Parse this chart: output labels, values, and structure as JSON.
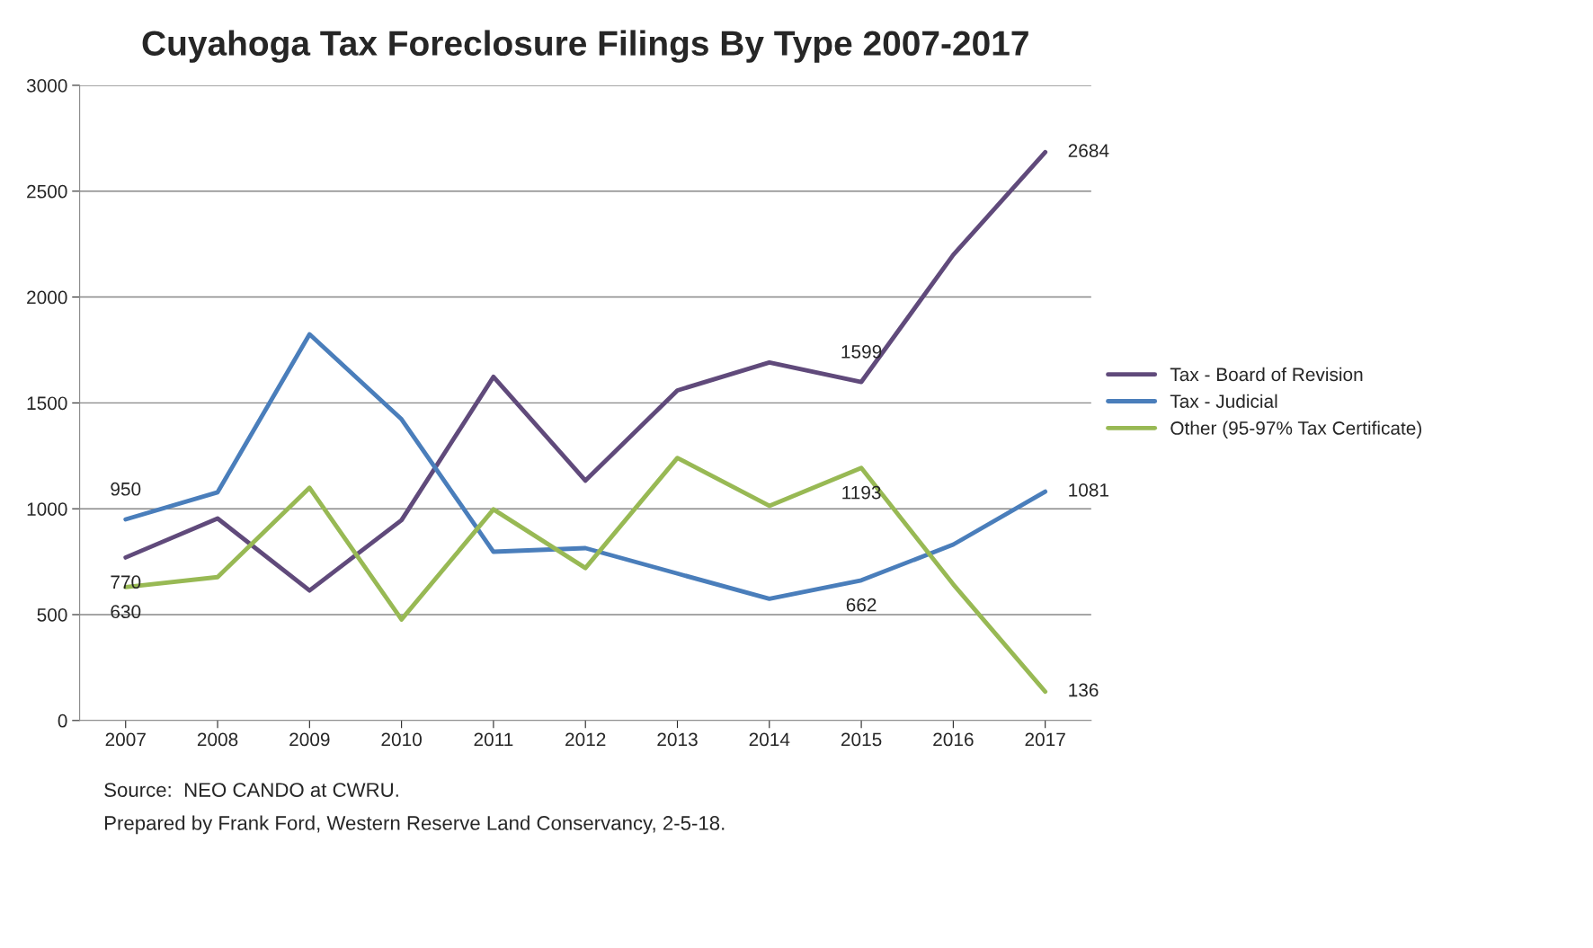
{
  "chart_data": {
    "type": "line",
    "title": "Cuyahoga Tax Foreclosure Filings By Type 2007-2017",
    "categories": [
      "2007",
      "2008",
      "2009",
      "2010",
      "2011",
      "2012",
      "2013",
      "2014",
      "2015",
      "2016",
      "2017"
    ],
    "series": [
      {
        "name": "Tax - Board of Revision",
        "color": "#604a7b",
        "values": [
          770,
          954,
          614,
          946,
          1623,
          1133,
          1559,
          1691,
          1599,
          2199,
          2684
        ],
        "value_labels": [
          "770",
          null,
          null,
          null,
          null,
          null,
          null,
          null,
          "1599",
          null,
          "2684"
        ]
      },
      {
        "name": "Tax - Judicial",
        "color": "#4a7ebb",
        "values": [
          950,
          1078,
          1824,
          1423,
          797,
          814,
          694,
          575,
          662,
          831,
          1081
        ],
        "value_labels": [
          "950",
          null,
          null,
          null,
          null,
          null,
          null,
          null,
          "662",
          null,
          "1081"
        ]
      },
      {
        "name": "Other (95-97% Tax Certificate)",
        "color": "#98b954",
        "values": [
          630,
          677,
          1099,
          477,
          997,
          720,
          1240,
          1014,
          1193,
          643,
          136
        ],
        "value_labels": [
          "630",
          null,
          null,
          null,
          null,
          null,
          null,
          null,
          "1193",
          null,
          "136"
        ]
      }
    ],
    "ylim": [
      0,
      3000
    ],
    "yticks": [
      0,
      500,
      1000,
      1500,
      2000,
      2500,
      3000
    ],
    "grid": "y",
    "legend": "right",
    "marker": "none",
    "line_style": "solid",
    "annotations": [
      "Source:  NEO CANDO at CWRU.",
      "Prepared by Frank Ford, Western Reserve Land Conservancy, 2-5-18."
    ]
  }
}
